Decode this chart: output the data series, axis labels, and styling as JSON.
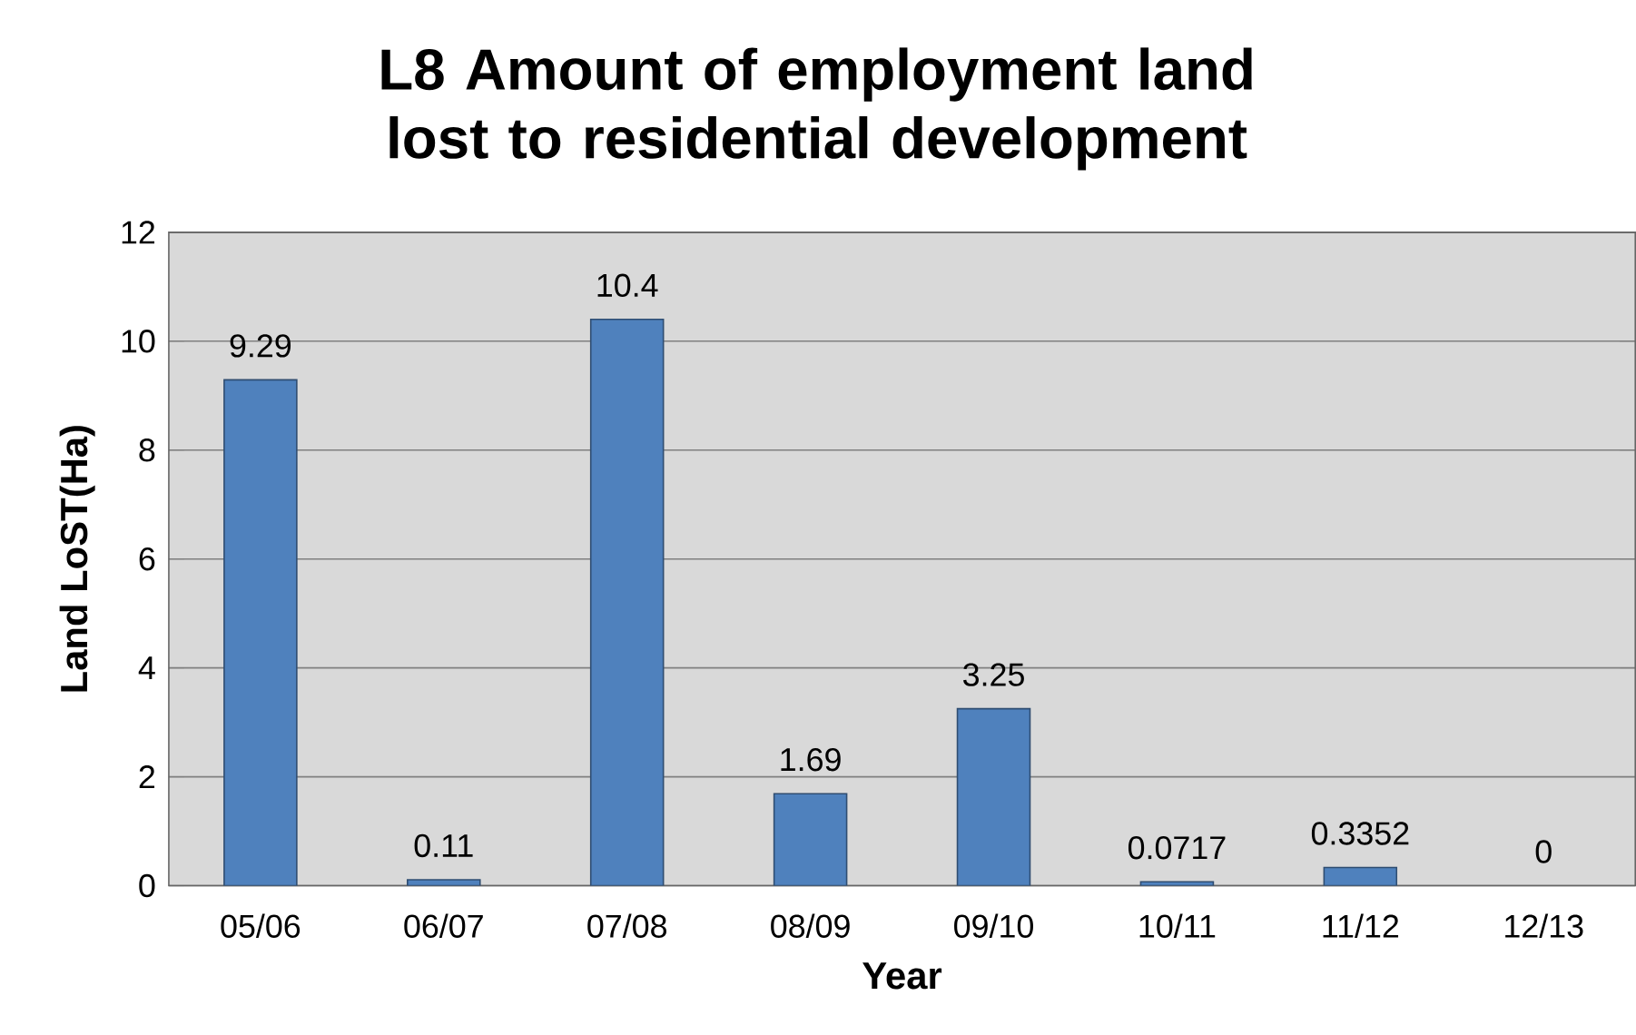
{
  "chart_data": {
    "type": "bar",
    "title": "L8 Amount of employment land lost to residential development",
    "xlabel": "Year",
    "ylabel": "Land LoST(Ha)",
    "categories": [
      "05/06",
      "06/07",
      "07/08",
      "08/09",
      "09/10",
      "10/11",
      "11/12",
      "12/13"
    ],
    "values": [
      9.29,
      0.11,
      10.4,
      1.69,
      3.25,
      0.0717,
      0.3352,
      0
    ],
    "color": "#4f81bd",
    "ylim": [
      0,
      12
    ],
    "yticks": [
      0,
      2,
      4,
      6,
      8,
      10,
      12
    ],
    "grid": "y",
    "data_labels": true
  }
}
